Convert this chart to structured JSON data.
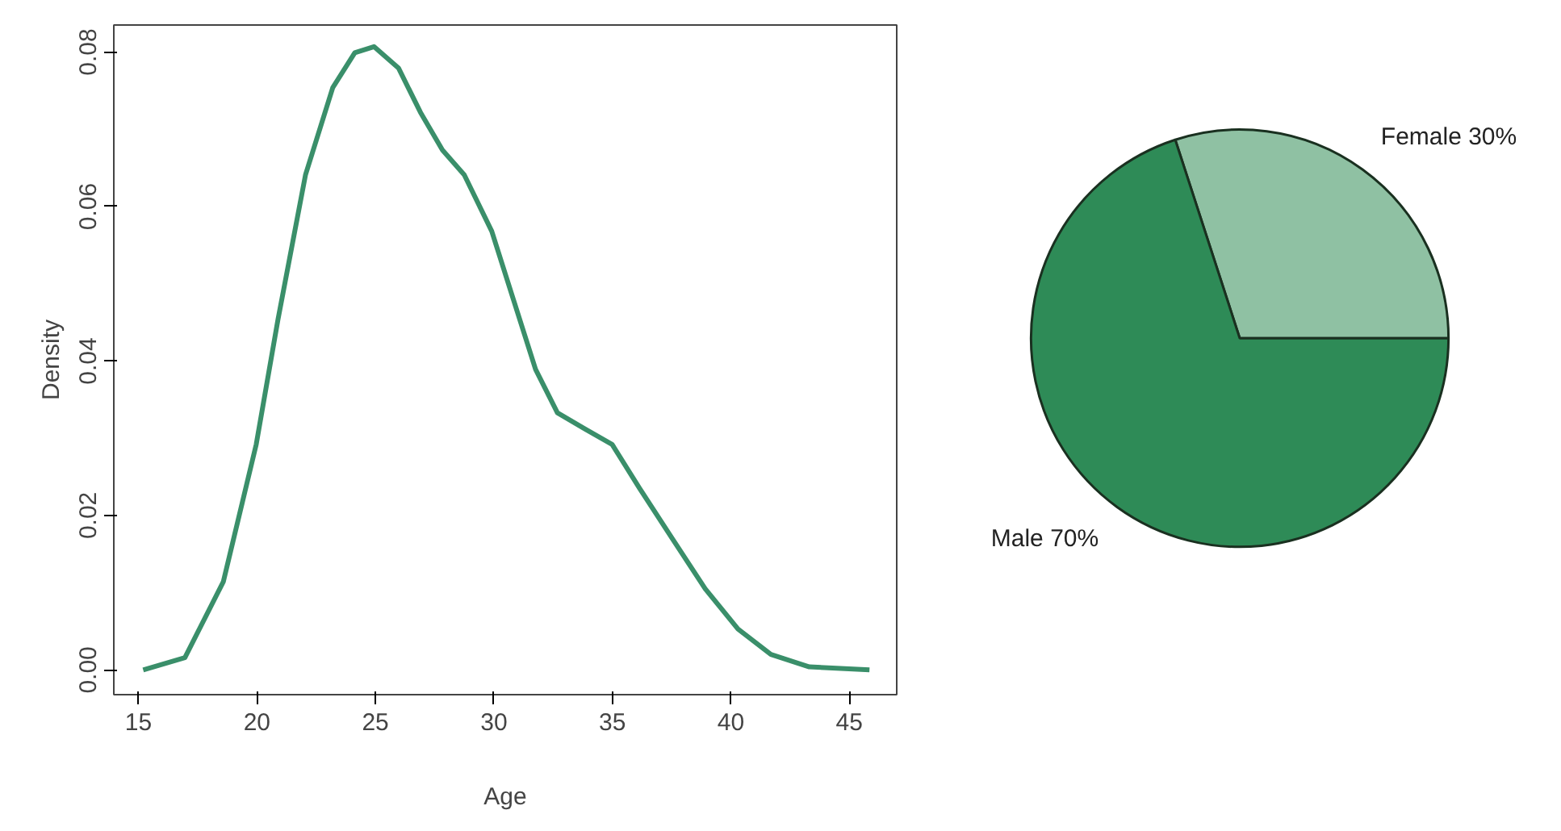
{
  "chart_data": [
    {
      "type": "line",
      "xlabel": "Age",
      "ylabel": "Density",
      "x": [
        15.2,
        16.96,
        18.58,
        19.97,
        20.89,
        22.05,
        23.2,
        24.13,
        24.94,
        25.98,
        26.9,
        27.83,
        28.75,
        29.91,
        30.83,
        31.76,
        32.68,
        33.84,
        34.99,
        36.15,
        37.53,
        38.92,
        40.3,
        41.69,
        43.31,
        45.85
      ],
      "series": [
        {
          "color": "#3a8f6a",
          "values": [
            0.0,
            0.0016,
            0.0114,
            0.0292,
            0.0454,
            0.0641,
            0.0754,
            0.0799,
            0.0807,
            0.0779,
            0.0722,
            0.0673,
            0.0641,
            0.0568,
            0.0479,
            0.0389,
            0.0333,
            0.0312,
            0.0292,
            0.0235,
            0.017,
            0.0105,
            0.0053,
            0.002,
            0.0004,
            0.0
          ]
        }
      ],
      "xlim": [
        13.96,
        47.0
      ],
      "ylim": [
        -0.0032,
        0.0835
      ],
      "xticks": [
        15,
        20,
        25,
        30,
        35,
        40,
        45
      ],
      "yticks": [
        {
          "value": 0,
          "label": "0.00"
        },
        {
          "value": 0.02,
          "label": "0.02"
        },
        {
          "value": 0.04,
          "label": "0.04"
        },
        {
          "value": 0.06,
          "label": "0.06"
        },
        {
          "value": 0.08,
          "label": "0.08"
        }
      ],
      "grid": false,
      "marker": "none",
      "line_style": "solid"
    },
    {
      "type": "pie",
      "categories": [
        "Female 30%",
        "Male 70%"
      ],
      "values": [
        30,
        70
      ],
      "colors": [
        "#8fc1a3",
        "#2e8b57"
      ]
    }
  ]
}
